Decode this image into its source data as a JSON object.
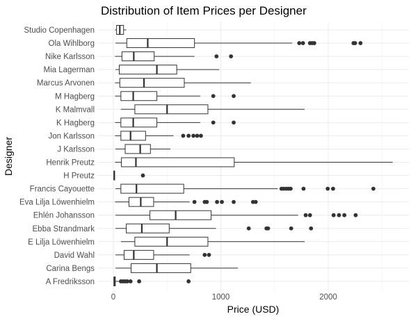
{
  "chart_data": {
    "type": "boxplot",
    "title": "Distribution of Item Prices per Designer",
    "xlabel": "Price (USD)",
    "ylabel": "Designer",
    "xlim": [
      -10,
      2760
    ],
    "x_ticks": [
      0,
      1000,
      2000
    ],
    "x_tick_labels": [
      "0",
      "1000",
      "2000"
    ],
    "grid": true,
    "series": [
      {
        "name": "Studio Copenhagen",
        "whisker_low": 15,
        "q1": 30,
        "median": 60,
        "q3": 95,
        "whisker_high": 120,
        "outliers": []
      },
      {
        "name": "Ola Wihlborg",
        "whisker_low": 20,
        "q1": 125,
        "median": 320,
        "q3": 755,
        "whisker_high": 1665,
        "outliers": [
          1730,
          1765,
          1830,
          1850,
          1870,
          2235,
          2250,
          2300
        ]
      },
      {
        "name": "Nike Karlsson",
        "whisker_low": 15,
        "q1": 80,
        "median": 190,
        "q3": 380,
        "whisker_high": 755,
        "outliers": [
          960,
          1095
        ]
      },
      {
        "name": "Mia Lagerman",
        "whisker_low": 20,
        "q1": 55,
        "median": 405,
        "q3": 590,
        "whisker_high": 985,
        "outliers": []
      },
      {
        "name": "Marcus Arvonen",
        "whisker_low": 15,
        "q1": 60,
        "median": 285,
        "q3": 660,
        "whisker_high": 1280,
        "outliers": []
      },
      {
        "name": "M Hagberg",
        "whisker_low": 15,
        "q1": 70,
        "median": 185,
        "q3": 405,
        "whisker_high": 810,
        "outliers": [
          930,
          1120
        ]
      },
      {
        "name": "K Malmvall",
        "whisker_low": 70,
        "q1": 200,
        "median": 500,
        "q3": 880,
        "whisker_high": 1780,
        "outliers": []
      },
      {
        "name": "K Hagberg",
        "whisker_low": 15,
        "q1": 70,
        "median": 185,
        "q3": 405,
        "whisker_high": 810,
        "outliers": [
          930,
          1120
        ]
      },
      {
        "name": "Jon Karlsson",
        "whisker_low": 15,
        "q1": 70,
        "median": 160,
        "q3": 300,
        "whisker_high": 560,
        "outliers": [
          650,
          700,
          745,
          780,
          815
        ]
      },
      {
        "name": "J Karlsson",
        "whisker_low": 20,
        "q1": 110,
        "median": 250,
        "q3": 345,
        "whisker_high": 530,
        "outliers": []
      },
      {
        "name": "Henrik Preutz",
        "whisker_low": 15,
        "q1": 75,
        "median": 210,
        "q3": 1125,
        "whisker_high": 2600,
        "outliers": []
      },
      {
        "name": "H Preutz",
        "whisker_low": 5,
        "q1": 5,
        "median": 8,
        "q3": 12,
        "whisker_high": 15,
        "outliers": [
          275
        ]
      },
      {
        "name": "Francis Cayouette",
        "whisker_low": 20,
        "q1": 70,
        "median": 215,
        "q3": 655,
        "whisker_high": 1530,
        "outliers": [
          1565,
          1585,
          1610,
          1630,
          1650,
          1770,
          1995,
          2045,
          2420
        ]
      },
      {
        "name": "Eva Lilja Löwenhielm",
        "whisker_low": 15,
        "q1": 145,
        "median": 255,
        "q3": 375,
        "whisker_high": 710,
        "outliers": [
          755,
          850,
          870,
          965,
          1010,
          1120,
          1300,
          1325
        ]
      },
      {
        "name": "Ehlén Johansson",
        "whisker_low": 20,
        "q1": 340,
        "median": 580,
        "q3": 910,
        "whisker_high": 1720,
        "outliers": [
          1790,
          1830,
          2050,
          2100,
          2150,
          2255
        ]
      },
      {
        "name": "Ebba Strandmark",
        "whisker_low": 20,
        "q1": 120,
        "median": 265,
        "q3": 520,
        "whisker_high": 955,
        "outliers": [
          1260,
          1425,
          1440,
          1655,
          1840
        ]
      },
      {
        "name": "E Lilja Löwenhielm",
        "whisker_low": 70,
        "q1": 200,
        "median": 500,
        "q3": 880,
        "whisker_high": 1780,
        "outliers": []
      },
      {
        "name": "David Wahl",
        "whisker_low": 20,
        "q1": 100,
        "median": 190,
        "q3": 375,
        "whisker_high": 710,
        "outliers": [
          850,
          890
        ]
      },
      {
        "name": "Carina Bengs",
        "whisker_low": 20,
        "q1": 165,
        "median": 405,
        "q3": 720,
        "whisker_high": 1160,
        "outliers": []
      },
      {
        "name": "A Fredriksson",
        "whisker_low": 5,
        "q1": 5,
        "median": 10,
        "q3": 18,
        "whisker_high": 50,
        "outliers": [
          70,
          90,
          110,
          130,
          160,
          240,
          700
        ]
      }
    ]
  }
}
